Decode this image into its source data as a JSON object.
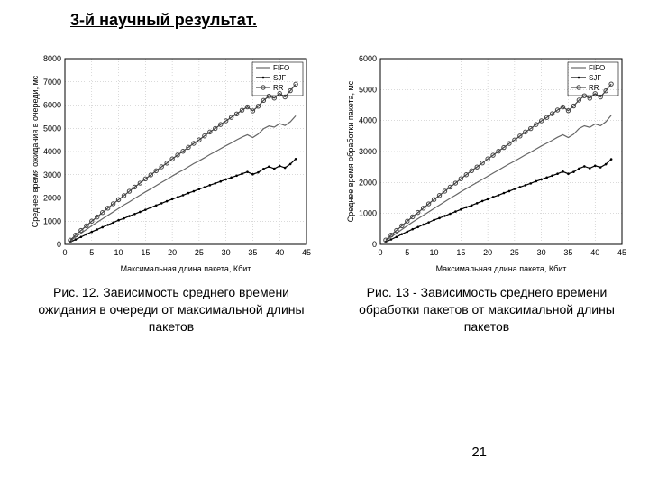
{
  "heading": "3-й научный результат.",
  "page_number": "21",
  "chart_left": {
    "type": "line",
    "title": "",
    "caption": "Рис. 12. Зависимость среднего времени ожидания в очереди от максимальной длины пакетов",
    "xlabel": "Максимальная длина пакета, Кбит",
    "ylabel": "Среднее время ожидания в очереди, мс",
    "xlim": [
      0,
      45
    ],
    "ylim": [
      0,
      8000
    ],
    "xtick_step": 5,
    "ytick_step": 1000,
    "background": "#ffffff",
    "grid_color": "#000000",
    "series": [
      {
        "name": "FIFO",
        "color": "#666666",
        "marker": "none",
        "x": [
          1,
          2,
          3,
          4,
          5,
          6,
          7,
          8,
          9,
          10,
          11,
          12,
          13,
          14,
          15,
          16,
          17,
          18,
          19,
          20,
          21,
          22,
          23,
          24,
          25,
          26,
          27,
          28,
          29,
          30,
          31,
          32,
          33,
          34,
          35,
          36,
          37,
          38,
          39,
          40,
          41,
          42,
          43
        ],
        "y": [
          150,
          320,
          480,
          640,
          800,
          950,
          1100,
          1250,
          1400,
          1550,
          1700,
          1830,
          1980,
          2120,
          2260,
          2390,
          2530,
          2670,
          2800,
          2940,
          3080,
          3200,
          3340,
          3480,
          3600,
          3730,
          3870,
          3990,
          4120,
          4250,
          4370,
          4500,
          4620,
          4720,
          4600,
          4750,
          4980,
          5100,
          5050,
          5200,
          5120,
          5280,
          5540
        ]
      },
      {
        "name": "SJF",
        "color": "#000000",
        "marker": "dot",
        "x": [
          1,
          2,
          3,
          4,
          5,
          6,
          7,
          8,
          9,
          10,
          11,
          12,
          13,
          14,
          15,
          16,
          17,
          18,
          19,
          20,
          21,
          22,
          23,
          24,
          25,
          26,
          27,
          28,
          29,
          30,
          31,
          32,
          33,
          34,
          35,
          36,
          37,
          38,
          39,
          40,
          41,
          42,
          43
        ],
        "y": [
          100,
          210,
          320,
          430,
          540,
          640,
          740,
          840,
          940,
          1040,
          1120,
          1220,
          1310,
          1400,
          1490,
          1590,
          1680,
          1770,
          1860,
          1950,
          2030,
          2120,
          2210,
          2290,
          2380,
          2460,
          2550,
          2630,
          2710,
          2800,
          2880,
          2960,
          3040,
          3120,
          3020,
          3100,
          3250,
          3350,
          3260,
          3380,
          3300,
          3460,
          3680
        ]
      },
      {
        "name": "RR",
        "color": "#444444",
        "marker": "circle",
        "x": [
          1,
          2,
          3,
          4,
          5,
          6,
          7,
          8,
          9,
          10,
          11,
          12,
          13,
          14,
          15,
          16,
          17,
          18,
          19,
          20,
          21,
          22,
          23,
          24,
          25,
          26,
          27,
          28,
          29,
          30,
          31,
          32,
          33,
          34,
          35,
          36,
          37,
          38,
          39,
          40,
          41,
          42,
          43
        ],
        "y": [
          180,
          400,
          600,
          800,
          1000,
          1180,
          1370,
          1560,
          1750,
          1930,
          2100,
          2290,
          2470,
          2640,
          2820,
          2990,
          3170,
          3340,
          3500,
          3680,
          3850,
          4010,
          4180,
          4350,
          4500,
          4670,
          4840,
          4990,
          5160,
          5320,
          5470,
          5620,
          5780,
          5920,
          5750,
          5950,
          6200,
          6380,
          6300,
          6500,
          6350,
          6620,
          6900
        ]
      }
    ],
    "legend_pos": "top-right"
  },
  "chart_right": {
    "type": "line",
    "title": "",
    "caption": "Рис. 13 - Зависимость среднего времени обработки пакетов от максимальной длины пакетов",
    "xlabel": "Максимальная длина пакета, Кбит",
    "ylabel": "Среднее время обработки пакета, мс",
    "xlim": [
      0,
      45
    ],
    "ylim": [
      0,
      6000
    ],
    "xtick_step": 5,
    "ytick_step": 1000,
    "background": "#ffffff",
    "grid_color": "#000000",
    "series": [
      {
        "name": "FIFO",
        "color": "#666666",
        "marker": "none",
        "x": [
          1,
          2,
          3,
          4,
          5,
          6,
          7,
          8,
          9,
          10,
          11,
          12,
          13,
          14,
          15,
          16,
          17,
          18,
          19,
          20,
          21,
          22,
          23,
          24,
          25,
          26,
          27,
          28,
          29,
          30,
          31,
          32,
          33,
          34,
          35,
          36,
          37,
          38,
          39,
          40,
          41,
          42,
          43
        ],
        "y": [
          110,
          240,
          360,
          480,
          600,
          720,
          830,
          940,
          1050,
          1160,
          1270,
          1380,
          1490,
          1590,
          1700,
          1800,
          1900,
          2000,
          2100,
          2200,
          2300,
          2400,
          2500,
          2600,
          2690,
          2790,
          2890,
          2980,
          3080,
          3180,
          3270,
          3360,
          3460,
          3540,
          3450,
          3560,
          3740,
          3830,
          3780,
          3890,
          3830,
          3960,
          4170
        ]
      },
      {
        "name": "SJF",
        "color": "#000000",
        "marker": "dot",
        "x": [
          1,
          2,
          3,
          4,
          5,
          6,
          7,
          8,
          9,
          10,
          11,
          12,
          13,
          14,
          15,
          16,
          17,
          18,
          19,
          20,
          21,
          22,
          23,
          24,
          25,
          26,
          27,
          28,
          29,
          30,
          31,
          32,
          33,
          34,
          35,
          36,
          37,
          38,
          39,
          40,
          41,
          42,
          43
        ],
        "y": [
          80,
          160,
          240,
          330,
          410,
          490,
          560,
          640,
          710,
          790,
          850,
          920,
          990,
          1060,
          1130,
          1200,
          1260,
          1330,
          1400,
          1460,
          1530,
          1590,
          1660,
          1720,
          1790,
          1850,
          1910,
          1970,
          2040,
          2100,
          2160,
          2220,
          2280,
          2350,
          2280,
          2340,
          2450,
          2520,
          2460,
          2540,
          2490,
          2590,
          2750
        ]
      },
      {
        "name": "RR",
        "color": "#444444",
        "marker": "circle",
        "x": [
          1,
          2,
          3,
          4,
          5,
          6,
          7,
          8,
          9,
          10,
          11,
          12,
          13,
          14,
          15,
          16,
          17,
          18,
          19,
          20,
          21,
          22,
          23,
          24,
          25,
          26,
          27,
          28,
          29,
          30,
          31,
          32,
          33,
          34,
          35,
          36,
          37,
          38,
          39,
          40,
          41,
          42,
          43
        ],
        "y": [
          140,
          300,
          450,
          600,
          750,
          890,
          1030,
          1170,
          1310,
          1450,
          1580,
          1720,
          1850,
          1980,
          2120,
          2250,
          2380,
          2500,
          2630,
          2760,
          2880,
          3010,
          3130,
          3260,
          3370,
          3500,
          3630,
          3740,
          3870,
          3990,
          4100,
          4220,
          4340,
          4440,
          4320,
          4470,
          4660,
          4800,
          4720,
          4870,
          4760,
          4960,
          5180
        ]
      }
    ],
    "legend_pos": "top-right"
  }
}
